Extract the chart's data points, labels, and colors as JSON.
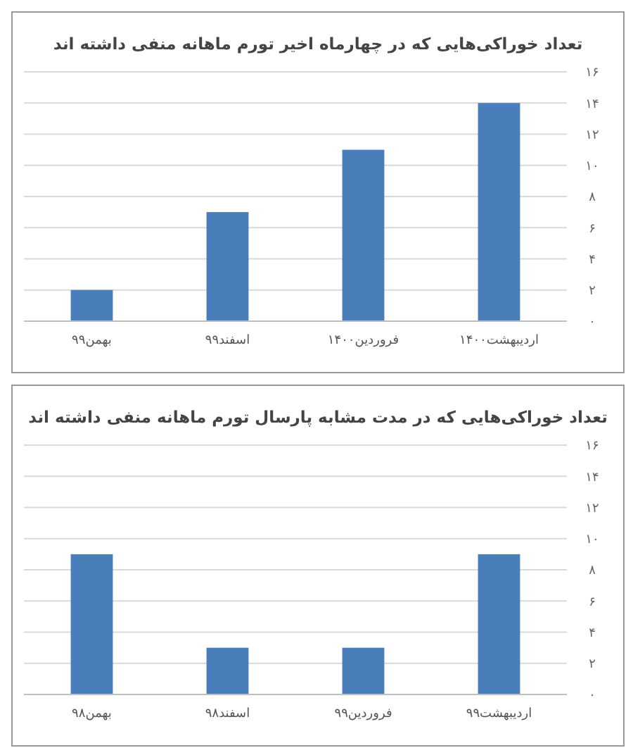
{
  "chart_data": [
    {
      "type": "bar",
      "title": "تعداد خوراکی‌هایی که در چهارماه اخیر تورم ماهانه منفی داشته اند",
      "categories": [
        "بهمن۹۹",
        "اسفند۹۹",
        "فروردین۱۴۰۰",
        "اردیبهشت۱۴۰۰"
      ],
      "values": [
        2,
        7,
        11,
        14
      ],
      "color": "#4a7ebb",
      "ylim": [
        0,
        16
      ],
      "yticks": [
        {
          "value": 0,
          "label": "۰"
        },
        {
          "value": 2,
          "label": "۲"
        },
        {
          "value": 4,
          "label": "۴"
        },
        {
          "value": 6,
          "label": "۶"
        },
        {
          "value": 8,
          "label": "۸"
        },
        {
          "value": 10,
          "label": "۱۰"
        },
        {
          "value": 12,
          "label": "۱۲"
        },
        {
          "value": 14,
          "label": "۱۴"
        },
        {
          "value": 16,
          "label": "۱۶"
        }
      ],
      "grid": "y"
    },
    {
      "type": "bar",
      "title": "تعداد خوراکی‌هایی که در مدت مشابه پارسال تورم ماهانه منفی داشته اند",
      "categories": [
        "بهمن۹۸",
        "اسفند۹۸",
        "فروردین۹۹",
        "اردیبهشت۹۹"
      ],
      "values": [
        9,
        3,
        3,
        9
      ],
      "color": "#4a7ebb",
      "ylim": [
        0,
        16
      ],
      "yticks": [
        {
          "value": 0,
          "label": "۰"
        },
        {
          "value": 2,
          "label": "۲"
        },
        {
          "value": 4,
          "label": "۴"
        },
        {
          "value": 6,
          "label": "۶"
        },
        {
          "value": 8,
          "label": "۸"
        },
        {
          "value": 10,
          "label": "۱۰"
        },
        {
          "value": 12,
          "label": "۱۲"
        },
        {
          "value": 14,
          "label": "۱۴"
        },
        {
          "value": 16,
          "label": "۱۶"
        }
      ],
      "grid": "y"
    }
  ]
}
